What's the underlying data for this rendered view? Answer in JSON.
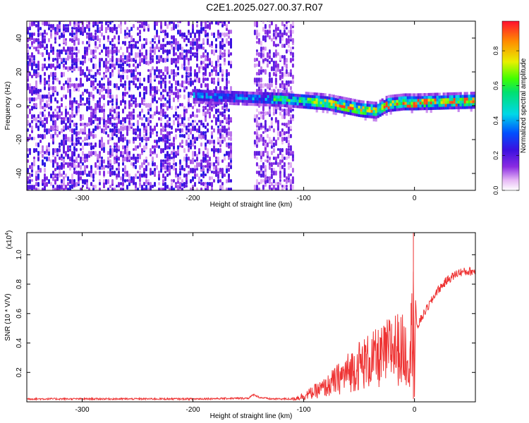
{
  "title": "C2E1.2025.027.00.37.R07",
  "chart_data": [
    {
      "type": "heatmap",
      "name": "spectrogram",
      "xlabel": "Height of straight line (km)",
      "ylabel": "Frequency (Hz)",
      "xlim": [
        -350,
        55
      ],
      "ylim": [
        -50,
        50
      ],
      "xticks": [
        -300,
        -200,
        -100,
        0
      ],
      "yticks": [
        -40,
        -20,
        0,
        20,
        40
      ],
      "colorbar": {
        "label": "Normalized spectral amplitude",
        "range": [
          0,
          0.97
        ],
        "ticks": [
          0.0,
          0.2,
          0.4,
          0.6,
          0.8
        ]
      },
      "features": [
        {
          "description": "broadband scattered noise",
          "x_range": [
            -350,
            -165
          ],
          "freq_range": [
            -50,
            50
          ],
          "level": 0.15
        },
        {
          "description": "scattered noise",
          "x_range": [
            -145,
            -110
          ],
          "freq_range": [
            -50,
            50
          ],
          "level": 0.12
        },
        {
          "description": "narrow signal band",
          "x_range": [
            -200,
            55
          ],
          "center_hz": [
            [
              -200,
              5
            ],
            [
              -160,
              4
            ],
            [
              -120,
              3
            ],
            [
              -80,
              1
            ],
            [
              -50,
              -3
            ],
            [
              -35,
              -4
            ],
            [
              -25,
              0
            ],
            [
              -10,
              1
            ],
            [
              0,
              1
            ],
            [
              55,
              2
            ]
          ],
          "peak_level": 0.95
        }
      ]
    },
    {
      "type": "line",
      "name": "snr",
      "xlabel": "Height of straight line (km)",
      "ylabel": "SNR (10 * V/V)",
      "yscale_label": "(x10",
      "yscale_exp": "4",
      "xlim": [
        -350,
        55
      ],
      "ylim": [
        0,
        1.15
      ],
      "xticks": [
        -300,
        -200,
        -100,
        0
      ],
      "yticks": [
        0.2,
        0.4,
        0.6,
        0.8,
        1.0
      ],
      "series": [
        {
          "name": "SNR",
          "color": "#ee3333",
          "x": [
            -350,
            -300,
            -250,
            -200,
            -150,
            -145,
            -140,
            -130,
            -120,
            -110,
            -100,
            -90,
            -80,
            -70,
            -60,
            -50,
            -40,
            -30,
            -25,
            -20,
            -15,
            -10,
            -5,
            -2,
            -1,
            0,
            1,
            2,
            5,
            10,
            15,
            20,
            30,
            40,
            55
          ],
          "y": [
            0.02,
            0.02,
            0.02,
            0.02,
            0.025,
            0.05,
            0.03,
            0.02,
            0.02,
            0.02,
            0.04,
            0.07,
            0.1,
            0.15,
            0.2,
            0.25,
            0.28,
            0.3,
            0.33,
            0.38,
            0.36,
            0.35,
            0.3,
            0.5,
            1.15,
            0.02,
            0.7,
            0.5,
            0.55,
            0.62,
            0.68,
            0.75,
            0.83,
            0.88,
            0.89
          ]
        }
      ]
    }
  ]
}
